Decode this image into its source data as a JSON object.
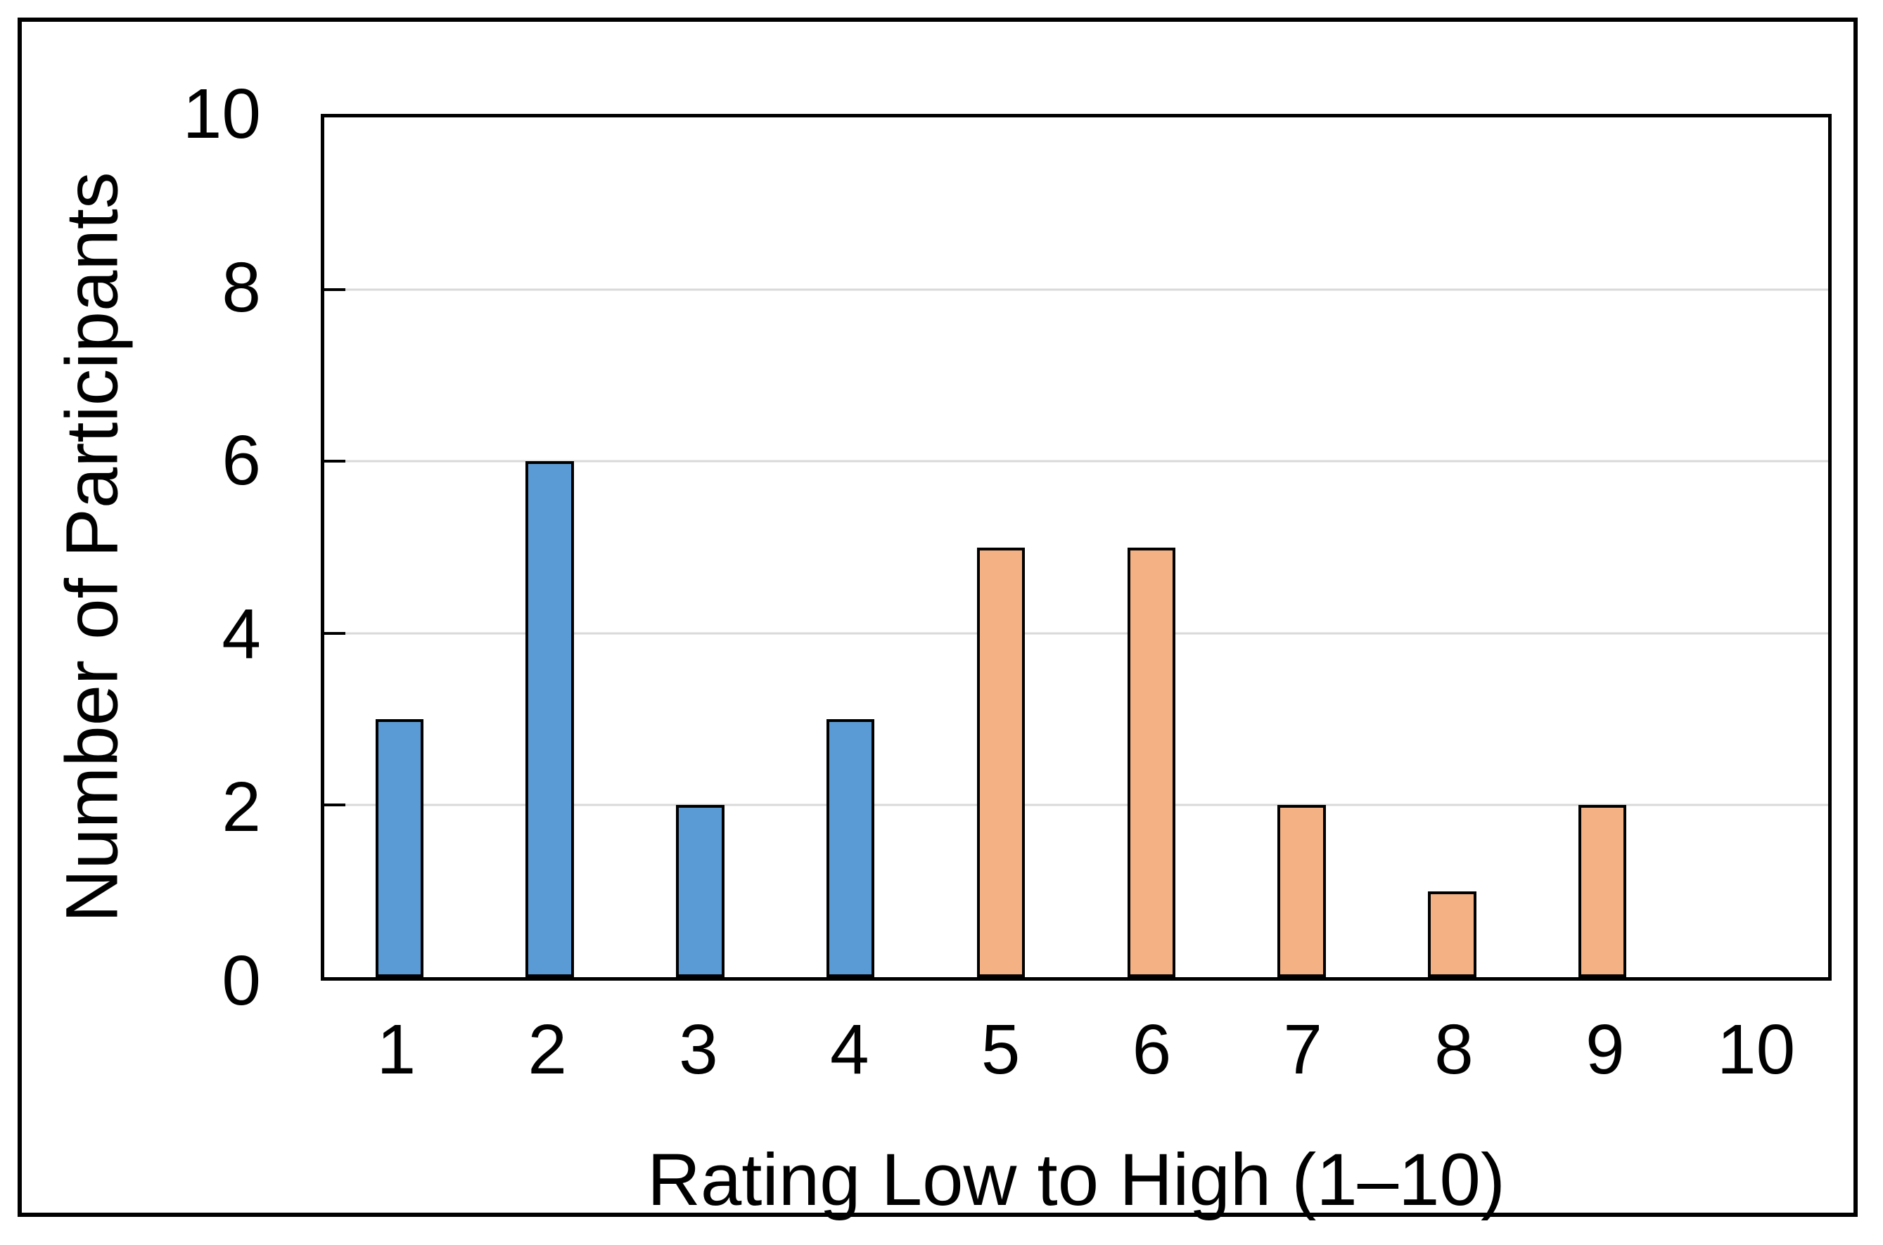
{
  "chart_data": {
    "type": "bar",
    "title": "",
    "categories": [
      "1",
      "2",
      "3",
      "4",
      "5",
      "6",
      "7",
      "8",
      "9",
      "10"
    ],
    "values": [
      3,
      6,
      2,
      3,
      5,
      5,
      2,
      1,
      2,
      0
    ],
    "bar_colors": [
      "#5B9BD5",
      "#5B9BD5",
      "#5B9BD5",
      "#5B9BD5",
      "#F4B183",
      "#F4B183",
      "#F4B183",
      "#F4B183",
      "#F4B183",
      "#F4B183"
    ],
    "xlabel": "Rating Low to High (1–10)",
    "ylabel": "Number of Participants",
    "ylim": [
      0,
      10
    ],
    "yticks": [
      0,
      2,
      4,
      6,
      8,
      10
    ],
    "grid": "horizontal-light",
    "legend": "none"
  },
  "colors": {
    "bar_blue": "#5B9BD5",
    "bar_orange": "#F4B183",
    "bar_outline": "#000000",
    "gridline": "#D9D9D9",
    "axis": "#000000",
    "background": "#FFFFFF",
    "text": "#000000"
  }
}
